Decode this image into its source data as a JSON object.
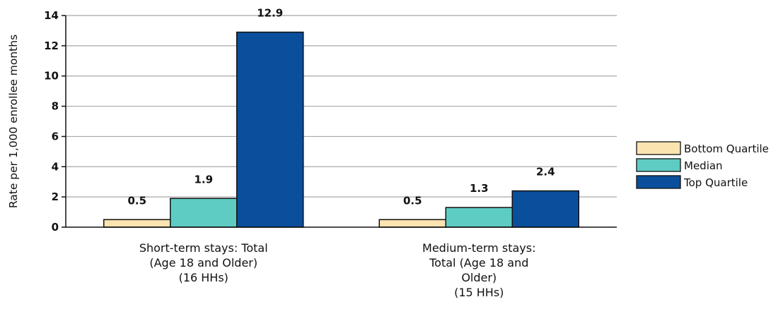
{
  "chart_data": {
    "type": "bar",
    "categories": [
      [
        "Short-term stays: Total",
        "(Age 18 and Older)",
        "(16 HHs)"
      ],
      [
        "Medium-term stays:",
        "Total (Age 18 and",
        "Older)",
        "(15 HHs)"
      ]
    ],
    "series": [
      {
        "name": "Bottom Quartile",
        "values": [
          0.5,
          0.5
        ],
        "labels": [
          "0.5",
          "0.5"
        ],
        "color": "#FCE4B0"
      },
      {
        "name": "Median",
        "values": [
          1.9,
          1.3
        ],
        "labels": [
          "1.9",
          "1.3"
        ],
        "color": "#5ECCC2"
      },
      {
        "name": "Top Quartile",
        "values": [
          12.9,
          2.4
        ],
        "labels": [
          "12.9",
          "2.4"
        ],
        "color": "#0A4F9C"
      }
    ],
    "ylabel": "Rate per 1,000 enrollee months",
    "ylim": [
      0,
      14
    ],
    "yticks": [
      0,
      2,
      4,
      6,
      8,
      10,
      12,
      14
    ],
    "ytick_labels": [
      "0",
      "2",
      "4",
      "6",
      "8",
      "10",
      "12",
      "14"
    ],
    "grid": true,
    "legend_position": "right"
  }
}
